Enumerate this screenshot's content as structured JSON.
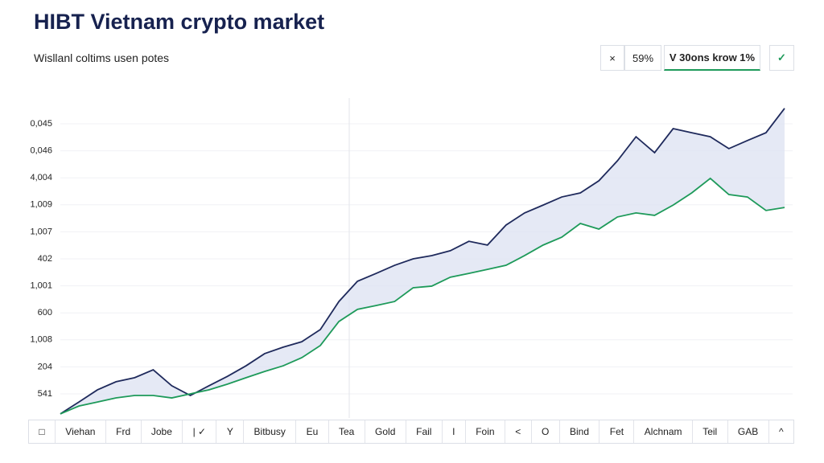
{
  "header": {
    "title": "HIBT Vietnam crypto market",
    "subtitle": "Wisllanl coltims usen potes"
  },
  "controls": {
    "close": "×",
    "percent": "59%",
    "dropdown": "V 30ons krow 1%",
    "confirm": "✓"
  },
  "chart_data": {
    "type": "line",
    "categories": [
      null,
      null,
      null,
      null,
      null,
      null,
      null,
      null,
      null,
      null,
      null,
      null,
      null,
      null,
      null,
      null,
      null,
      null,
      null,
      null,
      null,
      null,
      null,
      null,
      null,
      null,
      null,
      null,
      null,
      null,
      null,
      null,
      null,
      null,
      null,
      null,
      null,
      null,
      null,
      null
    ],
    "series": [
      {
        "color": "#1f2a5c",
        "values": [
          -0.74,
          -0.3,
          0.15,
          0.45,
          0.6,
          0.89,
          0.3,
          -0.06,
          0.3,
          0.65,
          1.04,
          1.49,
          1.73,
          1.93,
          2.38,
          3.42,
          4.17,
          4.46,
          4.76,
          5.0,
          5.12,
          5.3,
          5.65,
          5.51,
          6.25,
          6.7,
          6.99,
          7.29,
          7.44,
          7.89,
          8.63,
          9.52,
          8.93,
          9.82,
          9.67,
          9.52,
          9.08,
          9.38,
          9.67,
          10.57
        ]
      },
      {
        "color": "#1e9a5a",
        "values": [
          -0.74,
          -0.45,
          -0.3,
          -0.15,
          -0.06,
          -0.06,
          -0.15,
          0,
          0.15,
          0.36,
          0.6,
          0.83,
          1.04,
          1.34,
          1.79,
          2.68,
          3.13,
          3.27,
          3.42,
          3.93,
          3.99,
          4.32,
          4.46,
          4.61,
          4.76,
          5.12,
          5.51,
          5.8,
          6.31,
          6.1,
          6.55,
          6.7,
          6.61,
          6.99,
          7.44,
          7.98,
          7.38,
          7.29,
          6.79,
          6.9
        ]
      }
    ],
    "band_color": "#dfe3f3",
    "ylim": [
      -1,
      10.8
    ],
    "yticks": [
      {
        "value": 0,
        "label": "541"
      },
      {
        "value": 1,
        "label": "204"
      },
      {
        "value": 2,
        "label": "1,008"
      },
      {
        "value": 3,
        "label": "600"
      },
      {
        "value": 4,
        "label": "1,001"
      },
      {
        "value": 5,
        "label": "402"
      },
      {
        "value": 6,
        "label": "1,007"
      },
      {
        "value": 7,
        "label": "1,009"
      },
      {
        "value": 8,
        "label": "4,004"
      },
      {
        "value": 9,
        "label": "0,046"
      },
      {
        "value": 10,
        "label": "0,045"
      }
    ],
    "grid": true
  },
  "tabs": [
    "□",
    "Viehan",
    "Frd",
    "Jobe",
    "| ✓",
    "Y",
    "Bitbusy",
    "Eu",
    "Tea",
    "Gold",
    "Fail",
    "I",
    "Foin",
    "<",
    "O",
    "Bind",
    "Fet",
    "Alchnam",
    "Teil",
    "GAB",
    "^"
  ]
}
